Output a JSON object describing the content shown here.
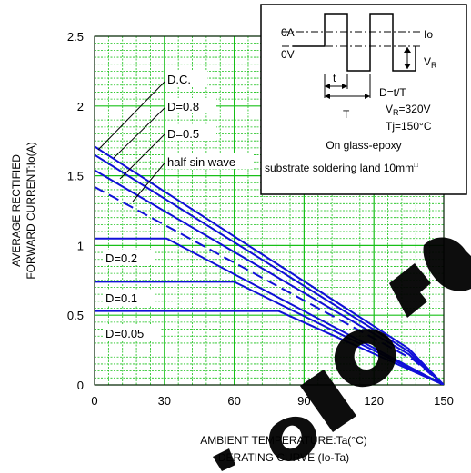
{
  "chart_data": {
    "type": "line",
    "xlabel": "AMBIENT TEMPERATURE:Ta(°C)",
    "ylabel_line1": "AVERAGE RECTIFIED",
    "ylabel_line2": "FORWARD CURRENT:Io(A)",
    "caption": "DERATING  CURVE (Io-Ta)",
    "xlim": [
      0,
      150
    ],
    "ylim": [
      0,
      2.5
    ],
    "x_ticks": [
      0,
      30,
      60,
      90,
      120,
      150
    ],
    "y_ticks": [
      0,
      0.5,
      1,
      1.5,
      2,
      2.5
    ],
    "x_tick_labels": [
      "0",
      "30",
      "60",
      "90",
      "120",
      "150"
    ],
    "y_tick_labels": [
      "0",
      "0.5",
      "1",
      "1.5",
      "2",
      "2.5"
    ],
    "grid": true,
    "grid_color": "#18c018",
    "line_color": "#1010d8",
    "series": [
      {
        "name": "D.C.",
        "dashed": false,
        "points": [
          [
            0,
            1.71
          ],
          [
            135,
            0.26
          ],
          [
            150,
            0
          ]
        ]
      },
      {
        "name": "D=0.8",
        "dashed": false,
        "points": [
          [
            0,
            1.65
          ],
          [
            135,
            0.24
          ],
          [
            150,
            0
          ]
        ]
      },
      {
        "name": "D=0.5",
        "dashed": false,
        "points": [
          [
            0,
            1.54
          ],
          [
            135,
            0.22
          ],
          [
            150,
            0
          ]
        ]
      },
      {
        "name": "half sin wave",
        "dashed": true,
        "points": [
          [
            0,
            1.42
          ],
          [
            137,
            0.18
          ],
          [
            150,
            0
          ]
        ]
      },
      {
        "name": "D=0.2",
        "dashed": false,
        "points": [
          [
            0,
            1.05
          ],
          [
            31,
            1.05
          ],
          [
            150,
            0
          ]
        ]
      },
      {
        "name": "D=0.1",
        "dashed": false,
        "points": [
          [
            0,
            0.74
          ],
          [
            60,
            0.74
          ],
          [
            150,
            0
          ]
        ]
      },
      {
        "name": "D=0.05",
        "dashed": false,
        "points": [
          [
            0,
            0.53
          ],
          [
            79,
            0.53
          ],
          [
            150,
            0
          ]
        ]
      }
    ],
    "labels": {
      "dc": "D.C.",
      "d08": "D=0.8",
      "d05": "D=0.5",
      "half": "half sin wave",
      "d02": "D=0.2",
      "d01": "D=0.1",
      "d005": "D=0.05"
    },
    "inset": {
      "label_0a": "0A",
      "label_0v": "0V",
      "label_io": "Io",
      "label_vr": "V",
      "label_vr_sub": "R",
      "label_t": "t",
      "label_T": "T",
      "duty_def": "D=t/T",
      "vr_value_prefix": "V",
      "vr_value_sub": "R",
      "vr_value_suffix": "=320V",
      "tj": "Tj=150°C",
      "board_line1": "On glass-epoxy",
      "board_line2": "substrate soldering land 10mm",
      "board_superscript": "□"
    }
  }
}
